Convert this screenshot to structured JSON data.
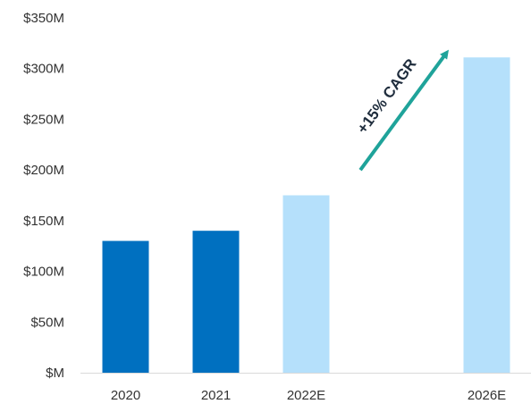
{
  "chart_data": {
    "type": "bar",
    "title": "",
    "xlabel": "",
    "ylabel": "",
    "ylim": [
      0,
      350
    ],
    "y_ticks": [
      0,
      50,
      100,
      150,
      200,
      250,
      300,
      350
    ],
    "y_tick_labels": [
      "$M",
      "$50M",
      "$100M",
      "$150M",
      "$200M",
      "$250M",
      "$300M",
      "$350M"
    ],
    "categories": [
      "2020",
      "2021",
      "2022E",
      "2026E"
    ],
    "category_positions": [
      0,
      1,
      2,
      4
    ],
    "values": [
      130,
      140,
      175,
      311
    ],
    "bar_colors": [
      "#0070c0",
      "#0070c0",
      "#b5e0fb",
      "#b5e0fb"
    ],
    "grid": false,
    "annotation": {
      "text": "+15% CAGR",
      "arrow_color": "#1fa39a",
      "from": {
        "category_position": 2.6,
        "value": 200
      },
      "to": {
        "category_position": 3.55,
        "value": 315
      }
    }
  }
}
